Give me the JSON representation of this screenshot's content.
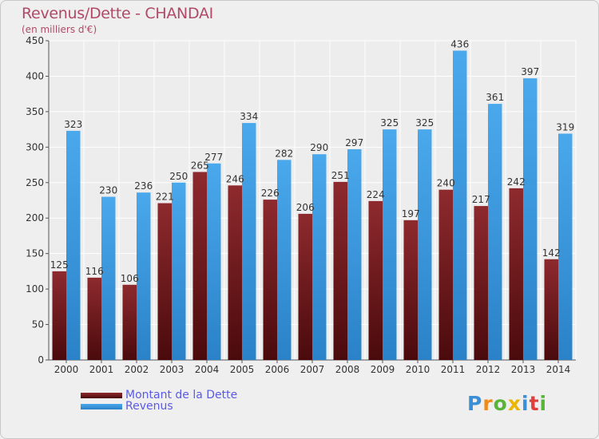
{
  "header": {
    "title": "Revenus/Dette - CHANDAI",
    "subtitle": "(en milliers d'€)"
  },
  "legend": {
    "items": [
      {
        "label": "Montant de la Dette",
        "color": "#7a1e22"
      },
      {
        "label": "Revenus",
        "color": "#3a9ee5"
      }
    ]
  },
  "logo": {
    "text": "Proxiti"
  },
  "chart_data": {
    "type": "bar",
    "title": "Revenus/Dette - CHANDAI",
    "subtitle": "(en milliers d'€)",
    "categories": [
      "2000",
      "2001",
      "2002",
      "2003",
      "2004",
      "2005",
      "2006",
      "2007",
      "2008",
      "2009",
      "2010",
      "2011",
      "2012",
      "2013",
      "2014"
    ],
    "series": [
      {
        "name": "Montant de la Dette",
        "color": "#7a1e22",
        "values": [
          125,
          116,
          106,
          221,
          265,
          246,
          226,
          206,
          251,
          224,
          197,
          240,
          217,
          242,
          142
        ]
      },
      {
        "name": "Revenus",
        "color": "#3a9ee5",
        "values": [
          323,
          230,
          236,
          250,
          277,
          334,
          282,
          290,
          297,
          325,
          325,
          436,
          361,
          397,
          319
        ]
      }
    ],
    "ylim": [
      0,
      450
    ],
    "yticks": [
      0,
      50,
      100,
      150,
      200,
      250,
      300,
      350,
      400,
      450
    ],
    "grid": true,
    "legend_position": "bottom-left"
  }
}
